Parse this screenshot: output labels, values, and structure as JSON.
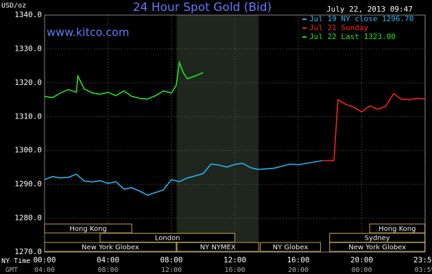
{
  "chart_data": {
    "type": "line",
    "title": "24 Hour Spot Gold (Bid)",
    "subtitle": "www.kitco.com",
    "timestamp": "July 22, 2013 09:47",
    "y_label": "USD/oz",
    "x_label": "NY Time",
    "x2_label": "GMT",
    "xlim": [
      0,
      24
    ],
    "ylim": [
      1270,
      1340
    ],
    "xticks": [
      {
        "value": 0,
        "label": "00:00"
      },
      {
        "value": 4,
        "label": "04:00"
      },
      {
        "value": 8,
        "label": "08:00"
      },
      {
        "value": 12,
        "label": "12:00"
      },
      {
        "value": 16,
        "label": "16:00"
      },
      {
        "value": 20,
        "label": "20:00"
      },
      {
        "value": 23.98,
        "label": "23:59"
      }
    ],
    "x2ticks": [
      "04:00",
      "08:00",
      "12:00",
      "16:00",
      "20:00",
      "00:00",
      "03:59"
    ],
    "yticks": [
      {
        "value": 1270,
        "label": "1270.0"
      },
      {
        "value": 1280,
        "label": "1280.0"
      },
      {
        "value": 1290,
        "label": "1290.0"
      },
      {
        "value": 1300,
        "label": "1300.0"
      },
      {
        "value": 1310,
        "label": "1310.0"
      },
      {
        "value": 1320,
        "label": "1320.0"
      },
      {
        "value": 1330,
        "label": "1330.0"
      },
      {
        "value": 1340,
        "label": "1340.0"
      }
    ],
    "grid": true,
    "shade": [
      8.33,
      13.5
    ],
    "sessions": [
      {
        "name": "Hong Kong",
        "start": 0,
        "end": 5.5,
        "row": 0
      },
      {
        "name": "Hong Kong",
        "start": 20.5,
        "end": 23.98,
        "row": 0
      },
      {
        "name": "London",
        "start": 3.5,
        "end": 12,
        "row": 1
      },
      {
        "name": "Sydney",
        "start": 17.98,
        "end": 23.98,
        "row": 1
      },
      {
        "name": "New York Globex",
        "start": 0,
        "end": 8.3,
        "row": 2
      },
      {
        "name": "NY NYMEX",
        "start": 8.35,
        "end": 13.5,
        "row": 2
      },
      {
        "name": "NY Globex",
        "start": 13.6,
        "end": 17.4,
        "row": 2
      },
      {
        "name": "New York Globex",
        "start": 17.98,
        "end": 23.98,
        "row": 2
      }
    ],
    "series": [
      {
        "name": "Jul 19 NY close 1296.70",
        "color": "#29b6f6",
        "x": [
          0,
          0.5,
          1,
          1.5,
          2,
          2.5,
          3,
          3.5,
          4,
          4.5,
          5,
          5.5,
          6,
          6.5,
          7,
          7.5,
          8,
          8.5,
          9,
          9.5,
          10,
          10.5,
          11,
          11.5,
          12,
          12.5,
          13,
          13.5,
          14,
          14.5,
          15,
          15.5,
          16,
          16.5,
          17,
          17.5
        ],
        "values": [
          1291.4,
          1292.3,
          1291.9,
          1292.1,
          1293.0,
          1291.0,
          1290.7,
          1291.1,
          1290.3,
          1290.8,
          1288.6,
          1289.0,
          1288.0,
          1286.8,
          1287.6,
          1288.4,
          1291.4,
          1290.8,
          1291.9,
          1292.5,
          1293.2,
          1296.0,
          1295.7,
          1295.1,
          1295.9,
          1296.2,
          1294.9,
          1294.4,
          1294.6,
          1294.8,
          1295.4,
          1296.0,
          1295.8,
          1296.2,
          1296.6,
          1297.0
        ]
      },
      {
        "name": "Jul 21 Sunday",
        "color": "#ff2020",
        "x": [
          17.5,
          18.0,
          18.25,
          18.5,
          19,
          19.5,
          20,
          20.5,
          21,
          21.5,
          22,
          22.5,
          23,
          23.5,
          23.98
        ],
        "values": [
          1297.0,
          1297.0,
          1297.0,
          1315.0,
          1313.6,
          1312.8,
          1311.4,
          1313.2,
          1312.2,
          1313.0,
          1316.8,
          1315.2,
          1315.0,
          1315.4,
          1315.2
        ]
      },
      {
        "name": "Jul 22 Last 1323.00",
        "color": "#22e822",
        "x": [
          0,
          0.5,
          1,
          1.5,
          2,
          2.1,
          2.5,
          3,
          3.5,
          4,
          4.5,
          5,
          5.5,
          6,
          6.5,
          7,
          7.5,
          8,
          8.3,
          8.5,
          8.75,
          9,
          9.5,
          10
        ],
        "values": [
          1316.0,
          1315.6,
          1317.0,
          1318.0,
          1317.2,
          1322.0,
          1318.2,
          1317.0,
          1316.6,
          1317.2,
          1316.2,
          1317.6,
          1316.0,
          1315.4,
          1315.2,
          1316.2,
          1317.6,
          1317.0,
          1319.2,
          1326.0,
          1323.0,
          1321.2,
          1322.0,
          1323.0
        ]
      }
    ]
  }
}
